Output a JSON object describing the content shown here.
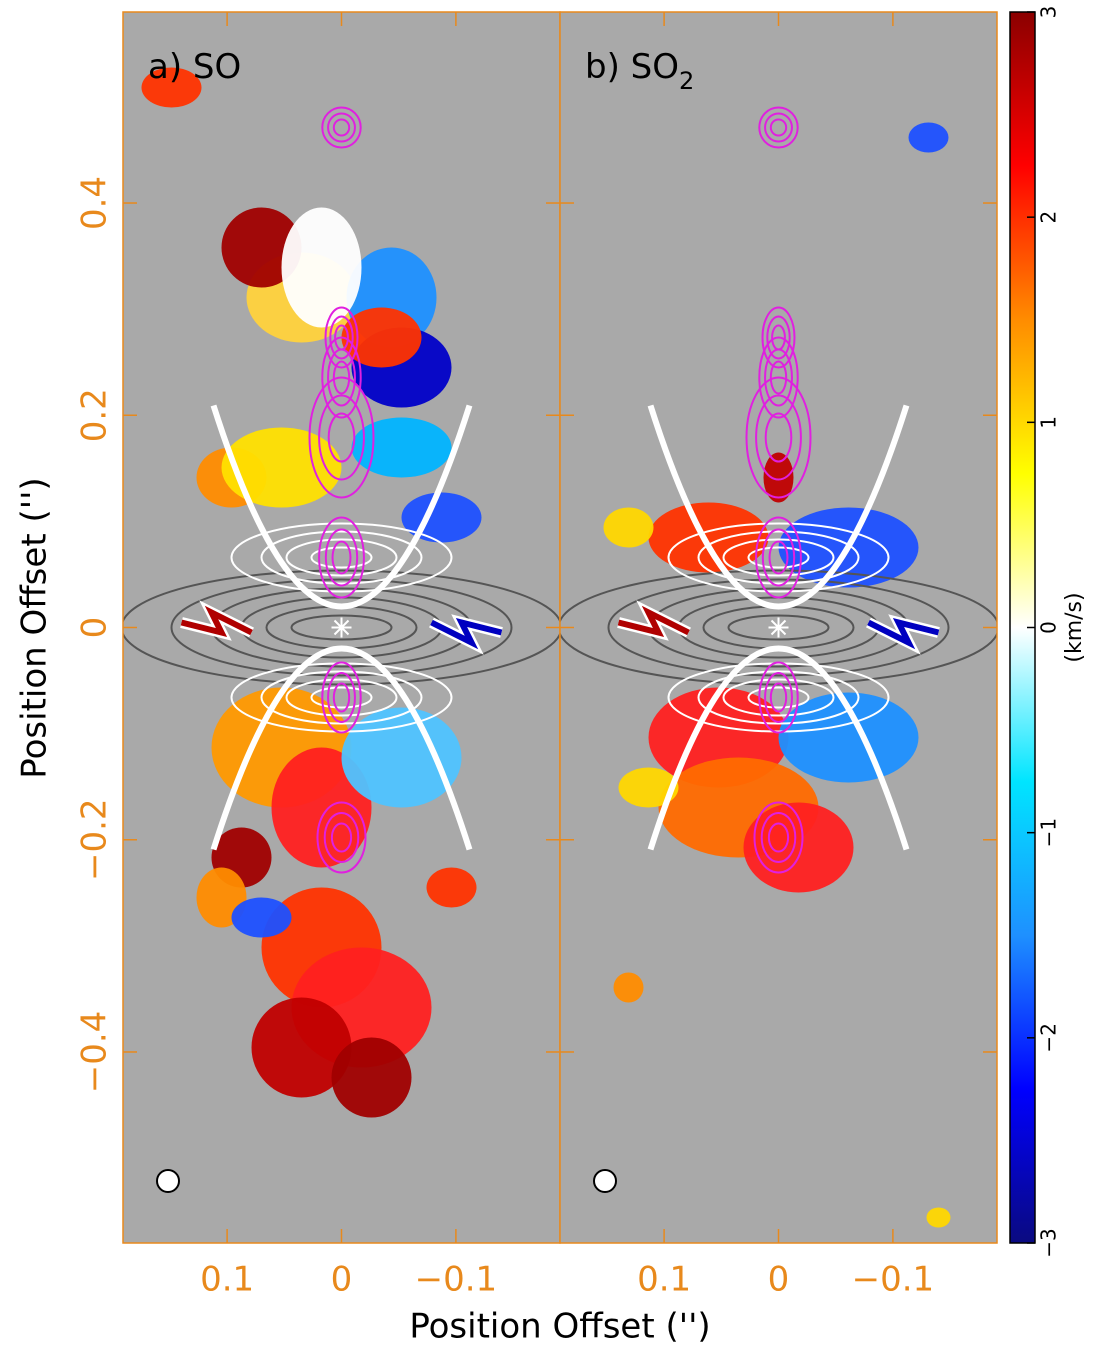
{
  "chart_data": {
    "type": "velocity-map",
    "xlabel": "Position Offset ('')",
    "ylabel": "Position Offset ('')",
    "xlim": [
      0.191,
      -0.191
    ],
    "ylim": [
      -0.58,
      0.58
    ],
    "xticks": [
      0.1,
      0,
      {
        "value": -0.1,
        "label": "−0.1"
      }
    ],
    "yticks": [
      {
        "value": -0.4,
        "label": "−0.4"
      },
      {
        "value": -0.2,
        "label": "−0.2"
      },
      0,
      0.2,
      0.4
    ],
    "axis_color": "#e8891c",
    "background": "#a9a9a9",
    "panels": [
      {
        "label": "a) SO"
      },
      {
        "label": "b) SO",
        "label_subscript": "2"
      }
    ],
    "colorbar": {
      "label": "(km/s)",
      "lim": [
        -3,
        3
      ],
      "ticks": [
        {
          "value": -3,
          "label": "−3"
        },
        {
          "value": -2,
          "label": "−2"
        },
        {
          "value": -1,
          "label": "−1"
        },
        0,
        1,
        2,
        3
      ],
      "colors": [
        "#0a0a80",
        "#0000ff",
        "#1e90ff",
        "#00e5ff",
        "#ffffff",
        "#ffff00",
        "#ff8c00",
        "#ff0000",
        "#8b0000"
      ]
    }
  }
}
